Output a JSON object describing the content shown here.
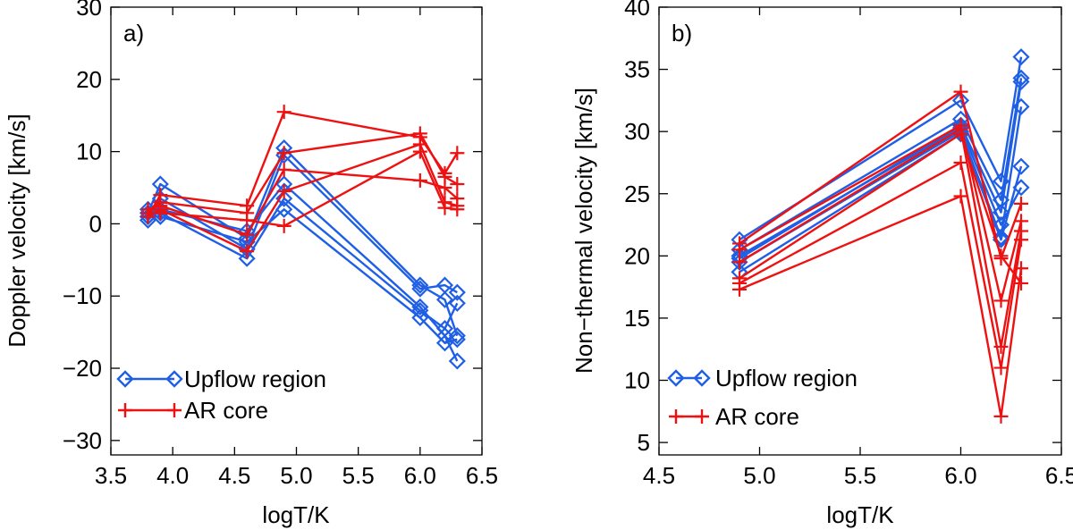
{
  "chart_data": [
    {
      "type": "line",
      "panel_label": "a)",
      "xlabel": "logT/K",
      "ylabel": "Doppler velocity [km/s]",
      "xlim": [
        3.5,
        6.5
      ],
      "ylim": [
        -32,
        30
      ],
      "xticks": [
        3.5,
        4.0,
        4.5,
        5.0,
        5.5,
        6.0,
        6.5
      ],
      "xtick_labels": [
        "3.5",
        "4.0",
        "4.5",
        "5.0",
        "5.5",
        "6.0",
        "6.5"
      ],
      "yticks": [
        -30,
        -20,
        -10,
        0,
        10,
        20,
        30
      ],
      "ytick_labels": [
        "−30",
        "−20",
        "−10",
        "0",
        "10",
        "20",
        "30"
      ],
      "legend_position": "bottom-left",
      "series": [
        {
          "name": "Upflow region",
          "group": "upflow",
          "x": [
            3.8,
            3.9,
            4.6,
            4.9,
            6.0,
            6.2,
            6.3
          ],
          "y": [
            1.5,
            5.5,
            -2.0,
            10.5,
            -8.5,
            -10.5,
            -15.5
          ]
        },
        {
          "name": "Upflow region",
          "group": "upflow",
          "x": [
            3.8,
            3.9,
            4.6,
            4.9,
            6.0,
            6.2,
            6.3
          ],
          "y": [
            0.5,
            3.5,
            -3.5,
            9.5,
            -9.0,
            -8.5,
            -9.5
          ]
        },
        {
          "name": "Upflow region",
          "group": "upflow",
          "x": [
            3.8,
            3.9,
            4.6,
            4.9,
            6.0,
            6.2,
            6.3
          ],
          "y": [
            1.0,
            2.0,
            -1.0,
            5.5,
            -11.5,
            -15.5,
            -19.0
          ]
        },
        {
          "name": "Upflow region",
          "group": "upflow",
          "x": [
            3.8,
            3.9,
            4.6,
            4.9,
            6.0,
            6.2,
            6.3
          ],
          "y": [
            2.0,
            1.5,
            -4.8,
            3.5,
            -12.0,
            -14.5,
            -11.0
          ]
        },
        {
          "name": "Upflow region",
          "group": "upflow",
          "x": [
            3.8,
            3.9,
            4.6,
            4.9,
            6.0,
            6.2,
            6.3
          ],
          "y": [
            1.0,
            1.0,
            -2.5,
            2.0,
            -13.0,
            -16.5,
            -16.0
          ]
        },
        {
          "name": "AR core",
          "group": "core",
          "x": [
            3.8,
            3.9,
            4.6,
            4.9,
            6.0,
            6.2,
            6.3
          ],
          "y": [
            1.0,
            4.0,
            2.5,
            15.5,
            12.0,
            7.0,
            9.8
          ]
        },
        {
          "name": "AR core",
          "group": "core",
          "x": [
            3.8,
            3.9,
            4.6,
            4.9,
            6.0,
            6.2,
            6.3
          ],
          "y": [
            1.5,
            3.0,
            1.5,
            9.8,
            12.5,
            6.5,
            5.5
          ]
        },
        {
          "name": "AR core",
          "group": "core",
          "x": [
            3.8,
            3.9,
            4.6,
            4.9,
            6.0,
            6.2,
            6.3
          ],
          "y": [
            2.0,
            2.5,
            -1.5,
            7.5,
            6.0,
            5.0,
            3.5
          ]
        },
        {
          "name": "AR core",
          "group": "core",
          "x": [
            3.8,
            3.9,
            4.6,
            4.9,
            6.0,
            6.2,
            6.3
          ],
          "y": [
            1.0,
            2.0,
            -3.8,
            4.5,
            11.0,
            3.0,
            2.5
          ]
        },
        {
          "name": "AR core",
          "group": "core",
          "x": [
            3.8,
            3.9,
            4.6,
            4.9,
            6.0,
            6.2,
            6.3
          ],
          "y": [
            1.5,
            1.5,
            0.5,
            -0.3,
            10.0,
            2.2,
            2.0
          ]
        }
      ]
    },
    {
      "type": "line",
      "panel_label": "b)",
      "xlabel": "logT/K",
      "ylabel": "Non−thermal velocity [km/s]",
      "xlim": [
        4.5,
        6.5
      ],
      "ylim": [
        4,
        40
      ],
      "xticks": [
        4.5,
        5.0,
        5.5,
        6.0,
        6.5
      ],
      "xtick_labels": [
        "4.5",
        "5.0",
        "5.5",
        "6.0",
        "6.5"
      ],
      "yticks": [
        5,
        10,
        15,
        20,
        25,
        30,
        35,
        40
      ],
      "ytick_labels": [
        "5",
        "10",
        "15",
        "20",
        "25",
        "30",
        "35",
        "40"
      ],
      "legend_position": "bottom-left",
      "series": [
        {
          "name": "Upflow region",
          "group": "upflow",
          "x": [
            4.9,
            6.0,
            6.2,
            6.3
          ],
          "y": [
            21.3,
            32.5,
            26.0,
            36.0
          ]
        },
        {
          "name": "Upflow region",
          "group": "upflow",
          "x": [
            4.9,
            6.0,
            6.2,
            6.3
          ],
          "y": [
            20.5,
            31.0,
            24.5,
            34.3
          ]
        },
        {
          "name": "Upflow region",
          "group": "upflow",
          "x": [
            4.9,
            6.0,
            6.2,
            6.3
          ],
          "y": [
            19.8,
            30.5,
            23.5,
            34.0
          ]
        },
        {
          "name": "Upflow region",
          "group": "upflow",
          "x": [
            4.9,
            6.0,
            6.2,
            6.3
          ],
          "y": [
            19.5,
            30.0,
            21.5,
            32.0
          ]
        },
        {
          "name": "Upflow region",
          "group": "upflow",
          "x": [
            4.9,
            6.0,
            6.2,
            6.3
          ],
          "y": [
            18.7,
            29.8,
            21.3,
            27.2
          ]
        },
        {
          "name": "Upflow region",
          "group": "upflow",
          "x": [
            4.9,
            6.0,
            6.2,
            6.3
          ],
          "y": [
            20.0,
            30.3,
            22.5,
            25.5
          ]
        },
        {
          "name": "AR core",
          "group": "core",
          "x": [
            4.9,
            6.0,
            6.2,
            6.3
          ],
          "y": [
            21.0,
            33.2,
            19.8,
            24.2
          ]
        },
        {
          "name": "AR core",
          "group": "core",
          "x": [
            4.9,
            6.0,
            6.2,
            6.3
          ],
          "y": [
            20.5,
            30.5,
            16.4,
            22.8
          ]
        },
        {
          "name": "AR core",
          "group": "core",
          "x": [
            4.9,
            6.0,
            6.2,
            6.3
          ],
          "y": [
            19.5,
            30.2,
            12.7,
            22.0
          ]
        },
        {
          "name": "AR core",
          "group": "core",
          "x": [
            4.9,
            6.0,
            6.2,
            6.3
          ],
          "y": [
            17.8,
            27.5,
            11.0,
            21.3
          ]
        },
        {
          "name": "AR core",
          "group": "core",
          "x": [
            4.9,
            6.0,
            6.2,
            6.3
          ],
          "y": [
            17.3,
            24.8,
            7.1,
            19.0
          ]
        },
        {
          "name": "AR core",
          "group": "core",
          "x": [
            4.9,
            6.0,
            6.2,
            6.3
          ],
          "y": [
            18.2,
            29.8,
            20.0,
            17.8
          ]
        }
      ]
    }
  ],
  "legend": {
    "upflow_label": "Upflow region",
    "core_label": "AR core"
  },
  "colors": {
    "upflow": "#1f5fe6",
    "core": "#ee1111",
    "axis": "#000000"
  },
  "markers": {
    "upflow": "diamond",
    "core": "plus"
  }
}
